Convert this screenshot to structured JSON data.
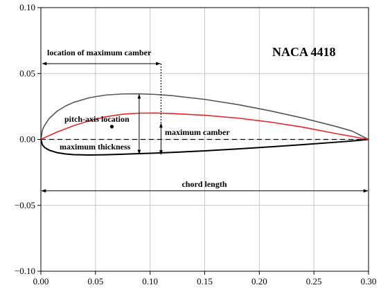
{
  "chart_data": {
    "type": "line",
    "title": "NACA 4418",
    "xlim": [
      0.0,
      0.3
    ],
    "ylim": [
      -0.1,
      0.1
    ],
    "xticks": [
      "0.00",
      "0.05",
      "0.10",
      "0.15",
      "0.20",
      "0.25",
      "0.30"
    ],
    "yticks": [
      "0.10",
      "0.05",
      "0.00",
      "−0.05",
      "−0.10"
    ],
    "grid": true,
    "colors": {
      "upper_surface": "#555555",
      "lower_surface": "#000000",
      "camber_line": "#e8232a",
      "chord_line": "#000000",
      "grid": "#c8c8c8"
    },
    "series": [
      {
        "key": "upper_surface",
        "x": [
          0.0,
          0.0015,
          0.00375,
          0.0075,
          0.015,
          0.0225,
          0.03,
          0.045,
          0.06,
          0.075,
          0.09,
          0.105,
          0.12,
          0.15,
          0.18,
          0.21,
          0.24,
          0.27,
          0.285,
          0.3
        ],
        "y": [
          0.0,
          0.00753,
          0.01107,
          0.01581,
          0.02151,
          0.02533,
          0.02811,
          0.03176,
          0.03372,
          0.03452,
          0.03461,
          0.03412,
          0.03321,
          0.03039,
          0.02646,
          0.02169,
          0.01617,
          0.00987,
          0.00633,
          0.0
        ]
      },
      {
        "key": "lower_surface",
        "x": [
          0.0,
          0.0015,
          0.00375,
          0.0075,
          0.015,
          0.0225,
          0.03,
          0.045,
          0.06,
          0.075,
          0.09,
          0.105,
          0.12,
          0.15,
          0.18,
          0.21,
          0.24,
          0.27,
          0.285,
          0.3
        ],
        "y": [
          0.0,
          -0.00432,
          -0.0063,
          -0.00813,
          -0.01005,
          -0.01101,
          -0.01152,
          -0.01182,
          -0.01161,
          -0.01119,
          -0.01077,
          -0.01038,
          -0.00987,
          -0.00867,
          -0.00723,
          -0.00561,
          -0.00393,
          -0.00213,
          -0.00117,
          0.0
        ]
      },
      {
        "key": "camber_line",
        "x": [
          0.0,
          0.0075,
          0.015,
          0.03,
          0.045,
          0.06,
          0.075,
          0.09,
          0.105,
          0.12,
          0.15,
          0.18,
          0.21,
          0.24,
          0.27,
          0.3
        ],
        "y": [
          0.0,
          0.00291,
          0.00563,
          0.01042,
          0.01435,
          0.01729,
          0.01911,
          0.01995,
          0.02004,
          0.01963,
          0.01836,
          0.01621,
          0.01319,
          0.00928,
          0.00447,
          0.0
        ]
      }
    ],
    "annotations": {
      "pitch_axis": {
        "label": "pitch-axis location",
        "x": 0.065,
        "y": 0.0097
      },
      "max_camber_location": {
        "label": "location of maximum camber",
        "x_from": 0.0,
        "x_to": 0.11,
        "y": 0.0575
      },
      "max_camber": {
        "label": "maximum camber",
        "x": 0.11,
        "y_from": -0.0115,
        "y_to": 0.0122
      },
      "max_thickness": {
        "label": "maximum thickness",
        "x": 0.09,
        "y_from": -0.0111,
        "y_to": 0.0342
      },
      "chord_length": {
        "label": "chord length",
        "x_from": 0.0,
        "x_to": 0.3,
        "y": -0.039
      }
    }
  }
}
